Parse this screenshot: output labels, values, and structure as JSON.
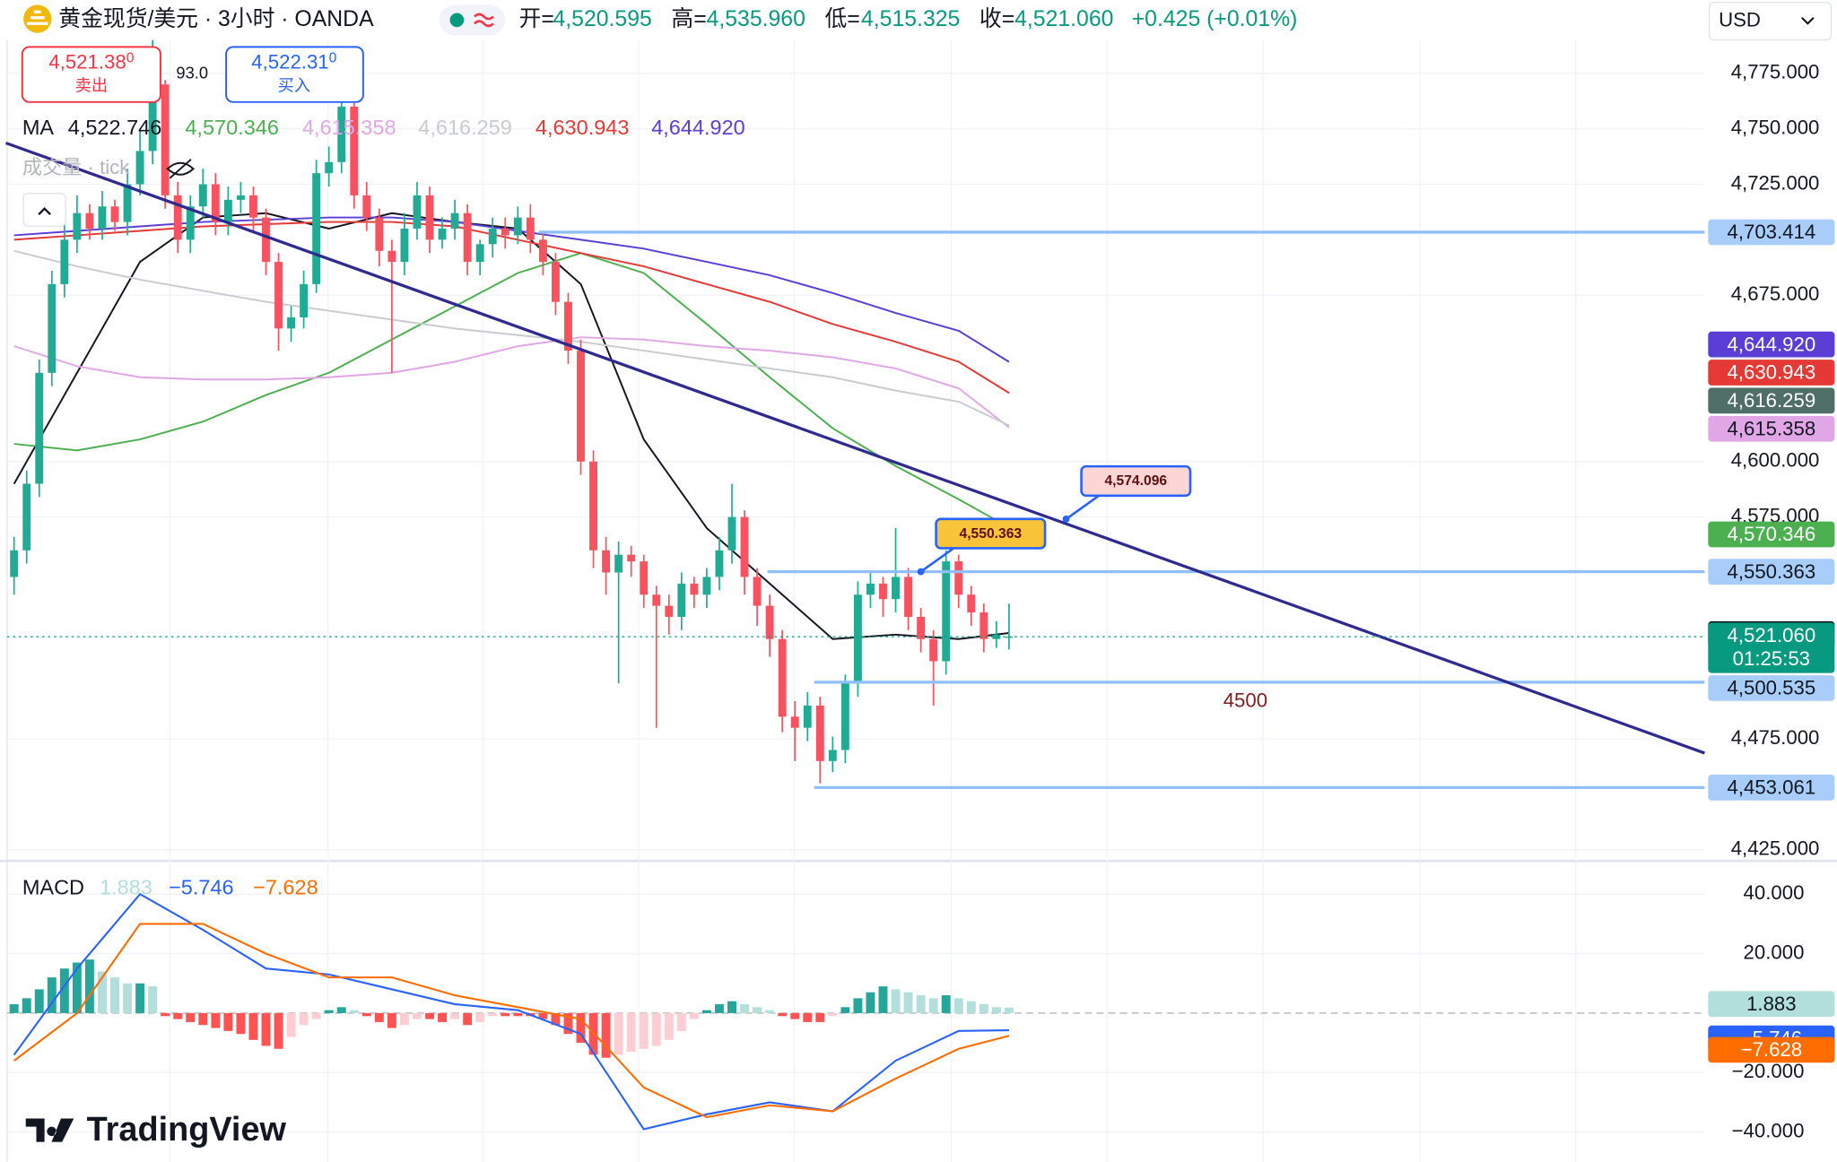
{
  "header": {
    "symbol": "黄金现货/美元 · 3小时 · OANDA",
    "ohlc": [
      {
        "label": "开=",
        "value": "4,520.595"
      },
      {
        "label": "高=",
        "value": "4,535.960"
      },
      {
        "label": "低=",
        "value": "4,515.325"
      },
      {
        "label": "收=",
        "value": "4,521.060"
      }
    ],
    "change": "+0.425 (+0.01%)",
    "currency": "USD"
  },
  "trade": {
    "sell": {
      "price": "4,521.38",
      "pip": "0",
      "label": "卖出"
    },
    "spread": "93.0",
    "buy": {
      "price": "4,522.31",
      "pip": "0",
      "label": "买入"
    }
  },
  "logo": "TradingView",
  "chart_data": [
    {
      "type": "candlestick",
      "open": [
        4548,
        4560,
        4590,
        4640,
        4680,
        4700,
        4712,
        4705,
        4715,
        4708,
        4725,
        4740,
        4770,
        4720,
        4700,
        4715,
        4725,
        4708,
        4718,
        4720,
        4710,
        4690,
        4660,
        4665,
        4680,
        4730,
        4735,
        4760,
        4720,
        4710,
        4695,
        4690,
        4705,
        4720,
        4700,
        4705,
        4712,
        4690,
        4698,
        4705,
        4702,
        4710,
        4700,
        4690,
        4672,
        4650,
        4600,
        4560,
        4550,
        4558,
        4555,
        4540,
        4535,
        4530,
        4545,
        4540,
        4548,
        4560,
        4575,
        4548,
        4535,
        4520,
        4485,
        4480,
        4490,
        4465,
        4470,
        4500,
        4540,
        4545,
        4538,
        4548,
        4530,
        4520,
        4510,
        4555,
        4540,
        4532,
        4520,
        4520.595
      ],
      "high": [
        4566,
        4596,
        4646,
        4686,
        4708,
        4720,
        4716,
        4722,
        4718,
        4732,
        4750,
        4800,
        4772,
        4726,
        4720,
        4732,
        4730,
        4724,
        4726,
        4724,
        4714,
        4694,
        4670,
        4686,
        4736,
        4742,
        4770,
        4764,
        4726,
        4714,
        4700,
        4712,
        4726,
        4724,
        4710,
        4718,
        4716,
        4700,
        4710,
        4710,
        4715,
        4716,
        4704,
        4694,
        4676,
        4655,
        4605,
        4566,
        4564,
        4562,
        4558,
        4544,
        4540,
        4550,
        4548,
        4552,
        4566,
        4590,
        4578,
        4552,
        4540,
        4524,
        4492,
        4496,
        4494,
        4476,
        4504,
        4546,
        4550,
        4548,
        4570,
        4552,
        4534,
        4524,
        4560,
        4558,
        4544,
        4536,
        4528,
        4535.96
      ],
      "low": [
        4540,
        4554,
        4584,
        4634,
        4674,
        4694,
        4700,
        4700,
        4704,
        4702,
        4720,
        4734,
        4714,
        4694,
        4694,
        4710,
        4702,
        4702,
        4712,
        4704,
        4684,
        4650,
        4654,
        4660,
        4676,
        4724,
        4730,
        4714,
        4704,
        4688,
        4640,
        4684,
        4700,
        4694,
        4696,
        4700,
        4684,
        4684,
        4692,
        4696,
        4698,
        4694,
        4684,
        4666,
        4644,
        4594,
        4552,
        4540,
        4500,
        4548,
        4534,
        4480,
        4522,
        4524,
        4534,
        4534,
        4542,
        4554,
        4540,
        4526,
        4512,
        4478,
        4465,
        4474,
        4455,
        4460,
        4464,
        4494,
        4534,
        4530,
        4532,
        4524,
        4514,
        4490,
        4504,
        4534,
        4526,
        4514,
        4516,
        4515.325
      ],
      "close": [
        4560,
        4590,
        4640,
        4680,
        4700,
        4712,
        4705,
        4715,
        4708,
        4725,
        4740,
        4770,
        4720,
        4700,
        4715,
        4725,
        4708,
        4718,
        4720,
        4710,
        4690,
        4660,
        4665,
        4680,
        4730,
        4735,
        4760,
        4720,
        4710,
        4695,
        4690,
        4705,
        4720,
        4700,
        4705,
        4712,
        4690,
        4698,
        4705,
        4702,
        4710,
        4700,
        4690,
        4672,
        4650,
        4600,
        4560,
        4550,
        4558,
        4555,
        4540,
        4535,
        4530,
        4545,
        4540,
        4548,
        4560,
        4575,
        4548,
        4535,
        4520,
        4485,
        4480,
        4490,
        4465,
        4470,
        4500,
        4540,
        4545,
        4538,
        4548,
        4530,
        4520,
        4510,
        4555,
        4540,
        4532,
        4520,
        4522,
        4521.06
      ],
      "up_color": "#22ab94",
      "down_color": "#f7525f",
      "ylim": [
        4420,
        4808
      ],
      "yticks": [
        {
          "value": 4775,
          "label": "4,775.000"
        },
        {
          "value": 4750,
          "label": "4,750.000"
        },
        {
          "value": 4725,
          "label": "4,725.000"
        },
        {
          "value": 4675,
          "label": "4,675.000"
        },
        {
          "value": 4600,
          "label": "4,600.000"
        },
        {
          "value": 4575,
          "label": "4,575.000"
        },
        {
          "value": 4475,
          "label": "4,475.000"
        },
        {
          "value": 4425,
          "label": "4,425.000"
        }
      ],
      "grid": true,
      "ma_legend": "MA",
      "volume_legend": "成交量 · tick",
      "ma_x": [
        0,
        5,
        10,
        15,
        20,
        25,
        30,
        35,
        40,
        45,
        50,
        55,
        60,
        65,
        70,
        75,
        79
      ],
      "series": [
        {
          "color": "#131722",
          "badge_color": "#131722",
          "values": [
            4590,
            4640,
            4690,
            4710,
            4712,
            4705,
            4712,
            4708,
            4705,
            4680,
            4610,
            4570,
            4545,
            4520,
            4522,
            4520,
            4522.746
          ],
          "value_label": "4,522.746"
        },
        {
          "color": "#4caf50",
          "badge_color": "#4caf50",
          "values": [
            4608,
            4605,
            4610,
            4618,
            4630,
            4640,
            4655,
            4670,
            4685,
            4694,
            4685,
            4662,
            4638,
            4615,
            4598,
            4583,
            4570.346
          ],
          "value_label": "4,570.346"
        },
        {
          "color": "#e1a6e6",
          "badge_color": "#e1a6e6",
          "values": [
            4652,
            4643,
            4638,
            4637,
            4637,
            4638,
            4640,
            4645,
            4652,
            4656,
            4655,
            4652,
            4650,
            4647,
            4642,
            4633,
            4615.358
          ],
          "value_label": "4,615.358"
        },
        {
          "color": "#c9cbd1",
          "badge_color": "#4f6f66",
          "values": [
            4695,
            4688,
            4682,
            4677,
            4672,
            4668,
            4664,
            4660,
            4657,
            4654,
            4650,
            4646,
            4642,
            4638,
            4632,
            4627,
            4616.259
          ],
          "value_label": "4,616.259"
        },
        {
          "color": "#e53935",
          "badge_color": "#e53935",
          "values": [
            4700,
            4702,
            4704,
            4706,
            4707,
            4708,
            4708,
            4706,
            4700,
            4694,
            4688,
            4680,
            4672,
            4662,
            4654,
            4645,
            4630.943
          ],
          "value_label": "4,630.943"
        },
        {
          "color": "#5b3ed6",
          "badge_color": "#5b3ed6",
          "values": [
            4702,
            4704,
            4706,
            4708,
            4709,
            4710,
            4710,
            4708,
            4704,
            4700,
            4696,
            4690,
            4684,
            4676,
            4667,
            4659,
            4644.92
          ],
          "value_label": "4,644.920"
        }
      ],
      "price_lines": [
        {
          "value": 4703.414,
          "label": "4,703.414"
        },
        {
          "value": 4550.363,
          "label": "4,550.363"
        },
        {
          "value": 4500.535,
          "label": "4,500.535"
        },
        {
          "value": 4453.061,
          "label": "4,453.061"
        }
      ],
      "price_line_color": "#90bff9",
      "trendline": {
        "values": [
          4743.6,
          4468.6
        ],
        "color": "#2e2a8f"
      },
      "callouts": [
        {
          "value": 4574.096,
          "label": "4,574.096",
          "color": "#fcd5d5"
        },
        {
          "value": 4550.363,
          "label": "4,550.363",
          "color": "#f9c33a"
        }
      ],
      "note": "4500",
      "last_price": {
        "value": 4521.06,
        "label": "4,521.060",
        "countdown": "01:25:53",
        "color": "#089981"
      }
    },
    {
      "type": "macd",
      "legend": "MACD",
      "ylim": [
        -50,
        50
      ],
      "yticks": [
        {
          "value": 40,
          "label": "40.000"
        },
        {
          "value": 20,
          "label": "20.000"
        },
        {
          "value": -20,
          "label": "−20.000"
        },
        {
          "value": -40,
          "label": "−40.000"
        }
      ],
      "histogram": {
        "values": [
          3,
          5,
          8,
          12,
          15,
          17,
          18,
          14,
          12,
          10,
          10,
          9,
          -1,
          -2,
          -3,
          -4,
          -5,
          -6,
          -7,
          -9,
          -11,
          -12,
          -8,
          -4,
          -2,
          1,
          2,
          1,
          -1,
          -3,
          -5,
          -4,
          -2,
          -2,
          -3,
          -2,
          -4,
          -3,
          -1,
          -1,
          -1,
          -1,
          -2,
          -4,
          -7,
          -10,
          -14,
          -15,
          -14,
          -13,
          -12,
          -11,
          -9,
          -6,
          -2,
          1,
          3,
          4,
          3,
          2,
          1,
          -1,
          -2,
          -3,
          -3,
          -1,
          2,
          5,
          7,
          9,
          8,
          7,
          6,
          5,
          6,
          5,
          4,
          3,
          2,
          1.883
        ],
        "value_label": "1.883",
        "colors": [
          "#26a69a",
          "#b2dfdb",
          "#ff5252",
          "#ffcdd2"
        ]
      },
      "x": [
        0,
        5,
        10,
        15,
        20,
        25,
        30,
        35,
        40,
        45,
        50,
        55,
        60,
        65,
        70,
        75,
        79
      ],
      "series": [
        {
          "color": "#2962ff",
          "values": [
            -14,
            15,
            40,
            28,
            15,
            13,
            8,
            3,
            1,
            -7,
            -39,
            -34,
            -30,
            -33,
            -16,
            -6,
            -5.746
          ],
          "value_label": "−5.746"
        },
        {
          "color": "#ff6d00",
          "values": [
            -16,
            0,
            30,
            30,
            20,
            12,
            12,
            6,
            2,
            -2,
            -25,
            -35,
            -31,
            -33,
            -22,
            -12,
            -7.628
          ],
          "value_label": "−7.628"
        }
      ]
    }
  ]
}
